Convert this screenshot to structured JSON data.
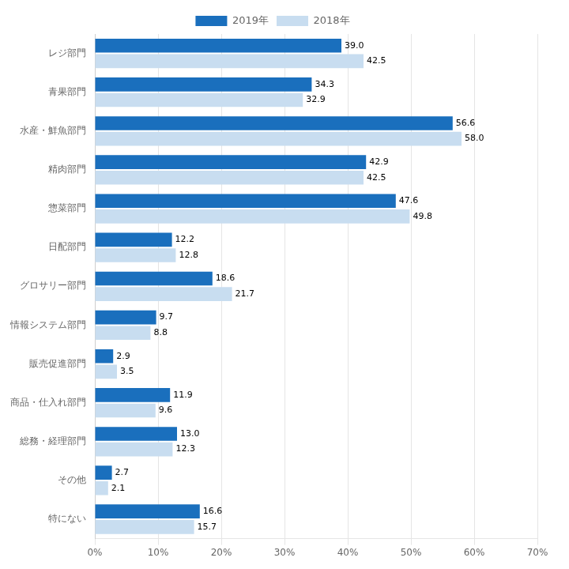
{
  "chart_data": {
    "type": "bar",
    "orientation": "horizontal",
    "categories": [
      "レジ部門",
      "青果部門",
      "水産・鮮魚部門",
      "精肉部門",
      "惣菜部門",
      "日配部門",
      "グロサリー部門",
      "情報システム部門",
      "販売促進部門",
      "商品・仕入れ部門",
      "総務・経理部門",
      "その他",
      "特にない"
    ],
    "series": [
      {
        "name": "2019年",
        "color": "#1a6fbd",
        "values": [
          39.0,
          34.3,
          56.6,
          42.9,
          47.6,
          12.2,
          18.6,
          9.7,
          2.9,
          11.9,
          13.0,
          2.7,
          16.6
        ],
        "value_labels": [
          "39.0",
          "34.3",
          "56.6",
          "42.9",
          "47.6",
          "12.2",
          "18.6",
          "9.7",
          "2.9",
          "11.9",
          "13.0",
          "2.7",
          "16.6"
        ]
      },
      {
        "name": "2018年",
        "color": "#c8ddf0",
        "values": [
          42.5,
          32.9,
          58.0,
          42.5,
          49.8,
          12.8,
          21.7,
          8.8,
          3.5,
          9.6,
          12.3,
          2.1,
          15.7
        ],
        "value_labels": [
          "42.5",
          "32.9",
          "58.0",
          "42.5",
          "49.8",
          "12.8",
          "21.7",
          "8.8",
          "3.5",
          "9.6",
          "12.3",
          "2.1",
          "15.7"
        ]
      }
    ],
    "xlim": [
      0,
      70
    ],
    "xticks": [
      {
        "value": 0,
        "label": "0%"
      },
      {
        "value": 10,
        "label": "10%"
      },
      {
        "value": 20,
        "label": "20%"
      },
      {
        "value": 30,
        "label": "30%"
      },
      {
        "value": 40,
        "label": "40%"
      },
      {
        "value": 50,
        "label": "50%"
      },
      {
        "value": 60,
        "label": "60%"
      },
      {
        "value": 70,
        "label": "70%"
      }
    ],
    "grid": true,
    "legend": "top",
    "data_labels": true
  }
}
